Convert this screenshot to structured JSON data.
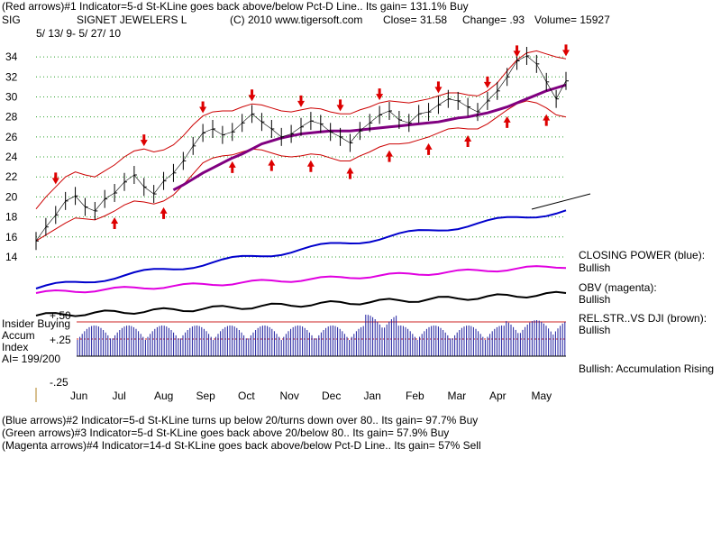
{
  "header": {
    "line1": "(Red arrows)#1 Indicator=5-d St-KLine goes back above/below Pct-D Line..  Its gain= 131.1% Buy",
    "ticker": "SIG",
    "company": "SIGNET JEWELERS L",
    "copyright": "(C) 2010 www.tigersoft.com",
    "close": "Close=   31.58",
    "change": "Change=  .93",
    "volume": "Volume=  15927",
    "date_range": "5/ 13/ 9-  5/ 27/ 10"
  },
  "right_panel": {
    "closing_power_label": "CLOSING POWER (blue):",
    "closing_power_value": "Bullish",
    "obv_label": "OBV (magenta):",
    "obv_value": "Bullish",
    "relstr_label": "REL.STR..VS DJI (brown):",
    "relstr_value": "Bullish",
    "bullish_note": "Bullish:  Accumulation Rising"
  },
  "accum_panel": {
    "title1": "Insider Buying",
    "title2": "Accum",
    "title3": "Index",
    "ai": "AI= 199/200",
    "level_plus50": "+.50",
    "level_plus25": "+.25",
    "level_minus25": "-.25"
  },
  "footer": {
    "line1": "(Blue arrows)#2 Indicator=5-d St-KLine turns up below 20/turns down over 80..  Its gain= 97.7% Buy",
    "line2": "(Green arrows)#3 Indicator=5-d St-KLine goes back above 20/below 80..  Its gain= 57.9% Buy",
    "line3": "(Magenta arrows)#4 Indicator=14-d St-KLine goes back above/below Pct-D Line..  Its gain= 57% Sell"
  },
  "colors": {
    "grid": "#2fa02f",
    "price": "#000000",
    "band": "#cc0000",
    "ma": "#800080",
    "closing_power": "#0000cc",
    "obv": "#e000e0",
    "relstr": "#000000",
    "accum_bars": "#2020a0",
    "arrow": "#dd0000",
    "level_line": "#cc2020"
  },
  "chart_data": {
    "type": "line",
    "title": "SIGNET JEWELERS L",
    "ylim": [
      14,
      35
    ],
    "yticks": [
      14,
      16,
      18,
      20,
      22,
      24,
      26,
      28,
      30,
      32,
      34
    ],
    "month_labels": [
      "Jun",
      "Jul",
      "Aug",
      "Sep",
      "Oct",
      "Nov",
      "Dec",
      "Jan",
      "Feb",
      "Mar",
      "Apr",
      "May"
    ],
    "n_weeks": 55,
    "series": [
      {
        "name": "Price (weekly close)",
        "values": [
          15.6,
          17.0,
          18.2,
          19.6,
          20.1,
          19.0,
          18.6,
          19.8,
          20.4,
          21.5,
          22.2,
          21.0,
          20.3,
          21.6,
          22.4,
          23.6,
          25.1,
          26.4,
          26.8,
          26.2,
          26.5,
          27.4,
          28.3,
          27.5,
          26.8,
          26.0,
          26.3,
          27.0,
          27.6,
          27.3,
          26.5,
          26.0,
          25.4,
          26.6,
          27.4,
          28.2,
          28.6,
          27.7,
          27.4,
          28.3,
          28.5,
          29.2,
          29.8,
          29.6,
          29.0,
          28.5,
          29.6,
          30.6,
          32.0,
          33.6,
          34.1,
          33.3,
          31.5,
          29.8,
          31.6
        ]
      },
      {
        "name": "Upper band",
        "values": [
          18.8,
          20.0,
          21.0,
          22.0,
          22.5,
          22.2,
          22.0,
          22.6,
          23.2,
          24.0,
          24.6,
          24.8,
          24.5,
          24.7,
          25.2,
          26.1,
          27.2,
          28.1,
          28.5,
          28.6,
          28.6,
          29.0,
          29.3,
          29.2,
          28.9,
          28.6,
          28.5,
          28.7,
          28.9,
          28.8,
          28.5,
          28.3,
          28.3,
          28.7,
          29.0,
          29.4,
          29.6,
          29.5,
          29.4,
          29.6,
          29.8,
          30.1,
          30.4,
          30.4,
          30.2,
          30.1,
          30.6,
          31.4,
          32.6,
          33.7,
          34.4,
          34.6,
          34.3,
          34.0,
          33.8
        ]
      },
      {
        "name": "Lower band",
        "values": [
          15.6,
          16.2,
          16.8,
          17.4,
          17.9,
          17.8,
          17.7,
          18.1,
          18.6,
          19.2,
          19.6,
          19.5,
          19.3,
          19.6,
          20.2,
          21.2,
          22.3,
          23.4,
          23.9,
          24.1,
          24.2,
          24.5,
          24.8,
          24.7,
          24.4,
          24.1,
          24.0,
          24.1,
          24.3,
          24.2,
          23.9,
          23.6,
          23.6,
          24.1,
          24.5,
          25.0,
          25.3,
          25.3,
          25.4,
          25.7,
          26.0,
          26.4,
          26.8,
          26.9,
          26.8,
          26.8,
          27.3,
          28.0,
          28.7,
          29.3,
          29.6,
          29.4,
          28.9,
          28.2,
          28.0
        ]
      },
      {
        "name": "Moving average",
        "values": [
          null,
          null,
          null,
          null,
          null,
          null,
          null,
          null,
          null,
          null,
          null,
          null,
          null,
          null,
          20.7,
          21.2,
          21.8,
          22.4,
          22.9,
          23.4,
          23.9,
          24.3,
          24.8,
          25.3,
          25.6,
          25.9,
          26.1,
          26.3,
          26.4,
          26.5,
          26.6,
          26.6,
          26.6,
          26.7,
          26.8,
          26.9,
          27.0,
          27.1,
          27.2,
          27.3,
          27.4,
          27.5,
          27.7,
          27.9,
          28.0,
          28.2,
          28.4,
          28.7,
          29.0,
          29.4,
          29.8,
          30.2,
          30.6,
          30.9,
          31.2
        ]
      },
      {
        "name": "Closing Power (blue)",
        "values": [
          null,
          null,
          null,
          null,
          null,
          null,
          null,
          null,
          null,
          null,
          null,
          null,
          null,
          null,
          null,
          null,
          null,
          null,
          null,
          null,
          null,
          null,
          null,
          null,
          null,
          null,
          null,
          null,
          null,
          null,
          null,
          null,
          null,
          null,
          null,
          null,
          null,
          null,
          null,
          null,
          null,
          null,
          null,
          null,
          null,
          null,
          null,
          null,
          null,
          null,
          null,
          null,
          null,
          null,
          null
        ]
      }
    ],
    "up_arrows_week": [
      8,
      13,
      20,
      24,
      28,
      32,
      36,
      40,
      44,
      48,
      52
    ],
    "down_arrows_week": [
      2,
      11,
      17,
      22,
      27,
      31,
      35,
      41,
      46,
      49,
      54
    ]
  }
}
